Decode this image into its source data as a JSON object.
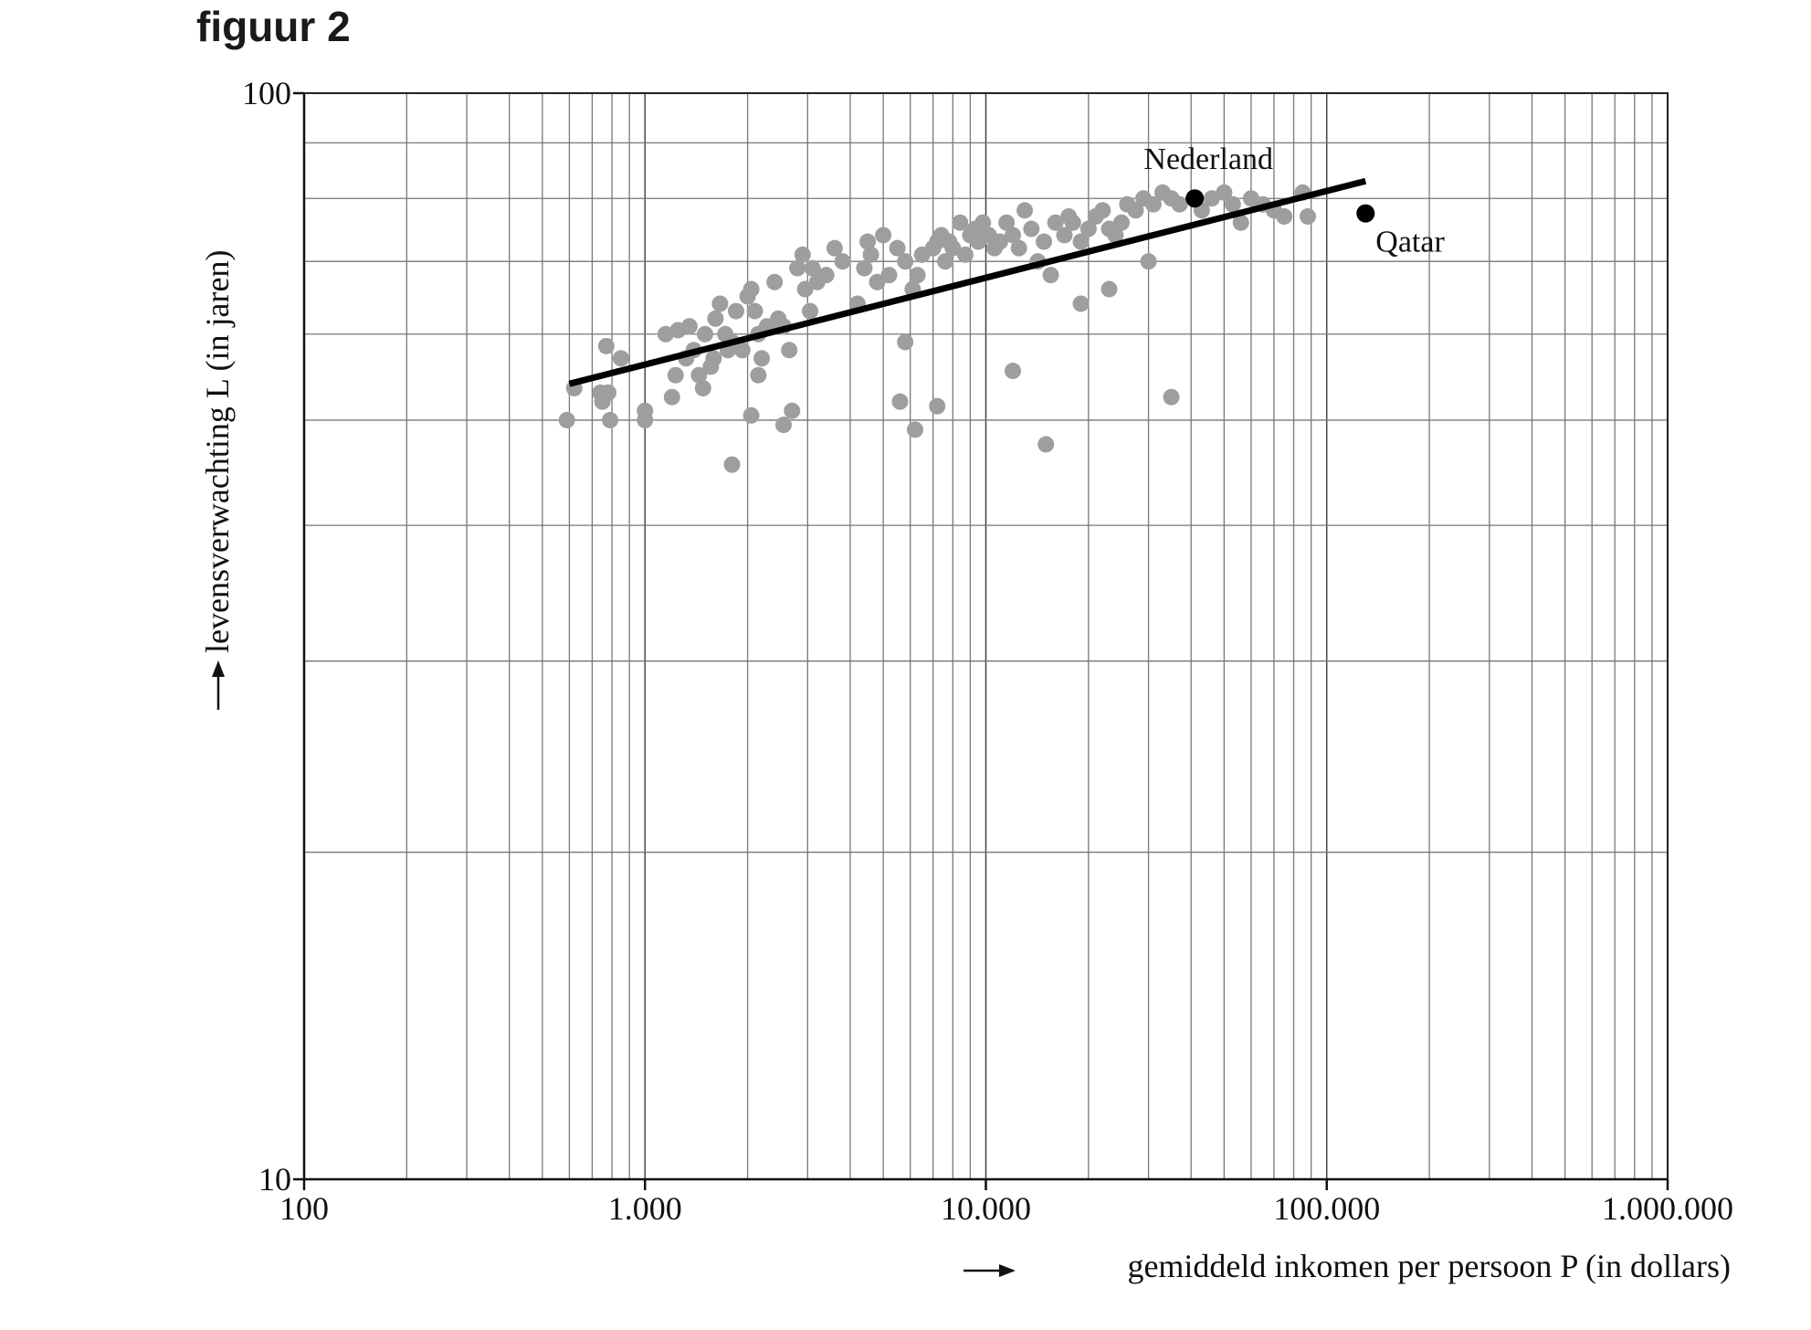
{
  "figure_title": "figuur 2",
  "chart_data": {
    "type": "scatter",
    "title": "",
    "xlabel": "gemiddeld inkomen per persoon P (in dollars)",
    "ylabel": "levensverwachting L (in jaren)",
    "x_scale": "log",
    "y_scale": "log",
    "xlim": [
      100,
      1000000
    ],
    "ylim": [
      10,
      100
    ],
    "x_tick_labels": [
      "100",
      "1.000",
      "10.000",
      "100.000",
      "1.000.000"
    ],
    "y_tick_labels": [
      "10",
      "100"
    ],
    "grid": true,
    "colors": {
      "countries": "#9e9e9e",
      "highlight": "#000000",
      "trend": "#000000"
    },
    "trend_line": {
      "x": [
        600,
        130000
      ],
      "y": [
        54,
        83
      ]
    },
    "highlighted": [
      {
        "name": "Nederland",
        "x": 41000,
        "y": 80
      },
      {
        "name": "Qatar",
        "x": 130000,
        "y": 77.5
      }
    ],
    "countries": {
      "x": [
        590,
        620,
        740,
        750,
        790,
        850,
        770,
        1000,
        1150,
        1200,
        1230,
        1250,
        1320,
        1350,
        1390,
        1440,
        1480,
        1500,
        1560,
        1590,
        1610,
        1660,
        1720,
        1750,
        1800,
        1850,
        1930,
        2000,
        2050,
        2100,
        2150,
        2200,
        2280,
        2400,
        2460,
        2550,
        2650,
        2800,
        2900,
        2950,
        3050,
        3100,
        3200,
        3400,
        3600,
        3800,
        4200,
        4400,
        4500,
        4600,
        4800,
        5000,
        5200,
        5500,
        5800,
        6100,
        6300,
        6500,
        7000,
        7200,
        7400,
        7600,
        7800,
        8000,
        8400,
        8700,
        9000,
        9300,
        9500,
        9800,
        10200,
        10600,
        11000,
        11500,
        12000,
        12500,
        13000,
        13600,
        14200,
        14800,
        15500,
        16000,
        17000,
        17500,
        18000,
        19000,
        20000,
        21000,
        22000,
        23000,
        24000,
        25000,
        26000,
        27500,
        29000,
        31000,
        33000,
        35000,
        37000,
        43000,
        46000,
        50000,
        53000,
        56000,
        60000,
        65000,
        70000,
        75000,
        85000,
        88000,
        2050,
        2550,
        2700,
        1800,
        2150,
        1000,
        780,
        6200,
        5600,
        7200,
        15000,
        35000,
        12000,
        5800,
        19000,
        23000,
        30000
      ],
      "y": [
        50,
        53.5,
        53,
        52,
        50,
        57,
        58.5,
        50,
        60,
        52.5,
        55,
        60.5,
        57,
        61,
        58,
        55,
        53.5,
        60,
        56,
        57,
        62,
        64,
        60,
        58,
        59,
        63,
        58,
        65,
        66,
        63,
        60,
        57,
        61,
        67,
        62,
        61,
        58,
        69,
        71,
        66,
        63,
        69,
        67,
        68,
        72,
        70,
        64,
        69,
        73,
        71,
        67,
        74,
        68,
        72,
        70,
        66,
        68,
        71,
        72,
        73,
        74,
        70,
        73,
        72,
        76,
        71,
        74,
        75,
        73,
        76,
        74,
        72,
        73,
        76,
        74,
        72,
        78,
        75,
        70,
        73,
        68,
        76,
        74,
        77,
        76,
        73,
        75,
        77,
        78,
        75,
        74,
        76,
        79,
        78,
        80,
        79,
        81,
        80,
        79,
        78,
        80,
        81,
        79,
        76,
        80,
        79,
        78,
        77,
        81,
        77,
        50.5,
        49.5,
        51,
        45.5,
        55,
        51,
        53,
        49,
        52,
        51.5,
        47.5,
        52.5,
        55.5,
        59,
        64,
        66,
        70
      ]
    }
  }
}
